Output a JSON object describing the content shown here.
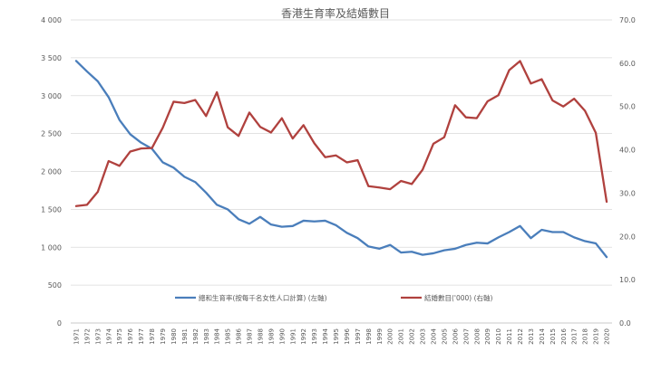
{
  "chart_data": {
    "type": "line",
    "title": "香港生育率及結婚數目",
    "x": [
      "1971",
      "1972",
      "1973",
      "1974",
      "1975",
      "1976",
      "1977",
      "1978",
      "1979",
      "1980",
      "1981",
      "1982",
      "1983",
      "1984",
      "1985",
      "1986",
      "1987",
      "1988",
      "1989",
      "1990",
      "1991",
      "1992",
      "1993",
      "1994",
      "1995",
      "1996",
      "1997",
      "1998",
      "1999",
      "2000",
      "2001",
      "2002",
      "2003",
      "2004",
      "2005",
      "2006",
      "2007",
      "2008",
      "2009",
      "2010",
      "2011",
      "2012",
      "2013",
      "2014",
      "2015",
      "2016",
      "2017",
      "2018",
      "2019",
      "2020"
    ],
    "y_left": {
      "ylim": [
        0,
        4000
      ],
      "ticks": [
        "0",
        "500",
        "1 000",
        "1 500",
        "2 000",
        "2 500",
        "3 000",
        "3 500",
        "4 000"
      ],
      "tick_values": [
        0,
        500,
        1000,
        1500,
        2000,
        2500,
        3000,
        3500,
        4000
      ]
    },
    "y_right": {
      "ylim": [
        0,
        70
      ],
      "ticks": [
        "0.0",
        "10.0",
        "20.0",
        "30.0",
        "40.0",
        "50.0",
        "60.0",
        "70.0"
      ],
      "tick_values": [
        0,
        10,
        20,
        30,
        40,
        50,
        60,
        70
      ]
    },
    "grid": "horizontal",
    "legend_position": "bottom",
    "series": [
      {
        "name": "總和生育率(按每千名女性人口計算) (左軸)",
        "axis": "left",
        "color": "#4a7ebb",
        "values": [
          3459,
          3320,
          3190,
          2980,
          2680,
          2490,
          2380,
          2300,
          2120,
          2050,
          1930,
          1860,
          1720,
          1560,
          1500,
          1370,
          1310,
          1400,
          1300,
          1270,
          1280,
          1350,
          1340,
          1350,
          1290,
          1190,
          1120,
          1010,
          980,
          1030,
          930,
          940,
          900,
          920,
          960,
          980,
          1030,
          1060,
          1050,
          1130,
          1200,
          1280,
          1120,
          1230,
          1200,
          1200,
          1130,
          1080,
          1050,
          870
        ]
      },
      {
        "name": "結婚數目('000) (右軸)",
        "axis": "right",
        "color": "#b0413e",
        "values": [
          27.0,
          27.3,
          30.3,
          37.4,
          36.3,
          39.6,
          40.3,
          40.4,
          45.1,
          51.1,
          50.8,
          51.5,
          47.8,
          53.3,
          45.2,
          43.2,
          48.6,
          45.3,
          44.0,
          47.3,
          42.6,
          45.7,
          41.5,
          38.3,
          38.7,
          37.1,
          37.6,
          31.6,
          31.3,
          30.9,
          32.8,
          32.1,
          35.4,
          41.4,
          42.9,
          50.3,
          47.5,
          47.3,
          51.2,
          52.6,
          58.4,
          60.5,
          55.3,
          56.3,
          51.4,
          50.0,
          51.8,
          49.0,
          43.9,
          28.0
        ]
      }
    ]
  }
}
